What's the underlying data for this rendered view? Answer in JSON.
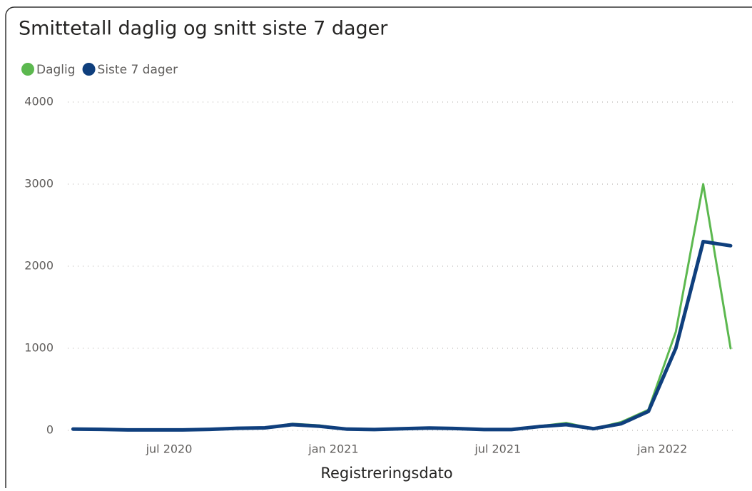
{
  "chart_data": {
    "type": "line",
    "title": "Smittetall daglig og snitt siste 7 dager",
    "x_label": "Registreringsdato",
    "x": [
      "2020-03",
      "2020-04",
      "2020-05",
      "2020-06",
      "2020-07",
      "2020-08",
      "2020-09",
      "2020-10",
      "2020-11",
      "2020-12",
      "2021-01",
      "2021-02",
      "2021-03",
      "2021-04",
      "2021-05",
      "2021-06",
      "2021-07",
      "2021-08",
      "2021-09",
      "2021-10",
      "2021-11",
      "2021-12",
      "2022-01",
      "2022-02",
      "2022-03"
    ],
    "series": [
      {
        "name": "Daglig",
        "color": "#5cb84f",
        "values": [
          20,
          15,
          5,
          5,
          5,
          15,
          30,
          30,
          80,
          60,
          15,
          10,
          25,
          30,
          25,
          10,
          10,
          50,
          90,
          20,
          100,
          250,
          1200,
          3000,
          1000
        ]
      },
      {
        "name": "Siste 7 dager",
        "color": "#0f3f7d",
        "values": [
          15,
          12,
          5,
          5,
          5,
          12,
          25,
          30,
          70,
          50,
          15,
          10,
          20,
          28,
          22,
          10,
          10,
          45,
          70,
          20,
          80,
          230,
          1000,
          2300,
          2250
        ]
      }
    ],
    "ylim": [
      0,
      4000
    ],
    "yticks": [
      0,
      1000,
      2000,
      3000,
      4000
    ],
    "xticks": [
      {
        "value": "2020-07",
        "label": "jul 2020"
      },
      {
        "value": "2021-01",
        "label": "jan 2021"
      },
      {
        "value": "2021-07",
        "label": "jul 2021"
      },
      {
        "value": "2022-01",
        "label": "jan 2022"
      }
    ],
    "grid": true
  }
}
